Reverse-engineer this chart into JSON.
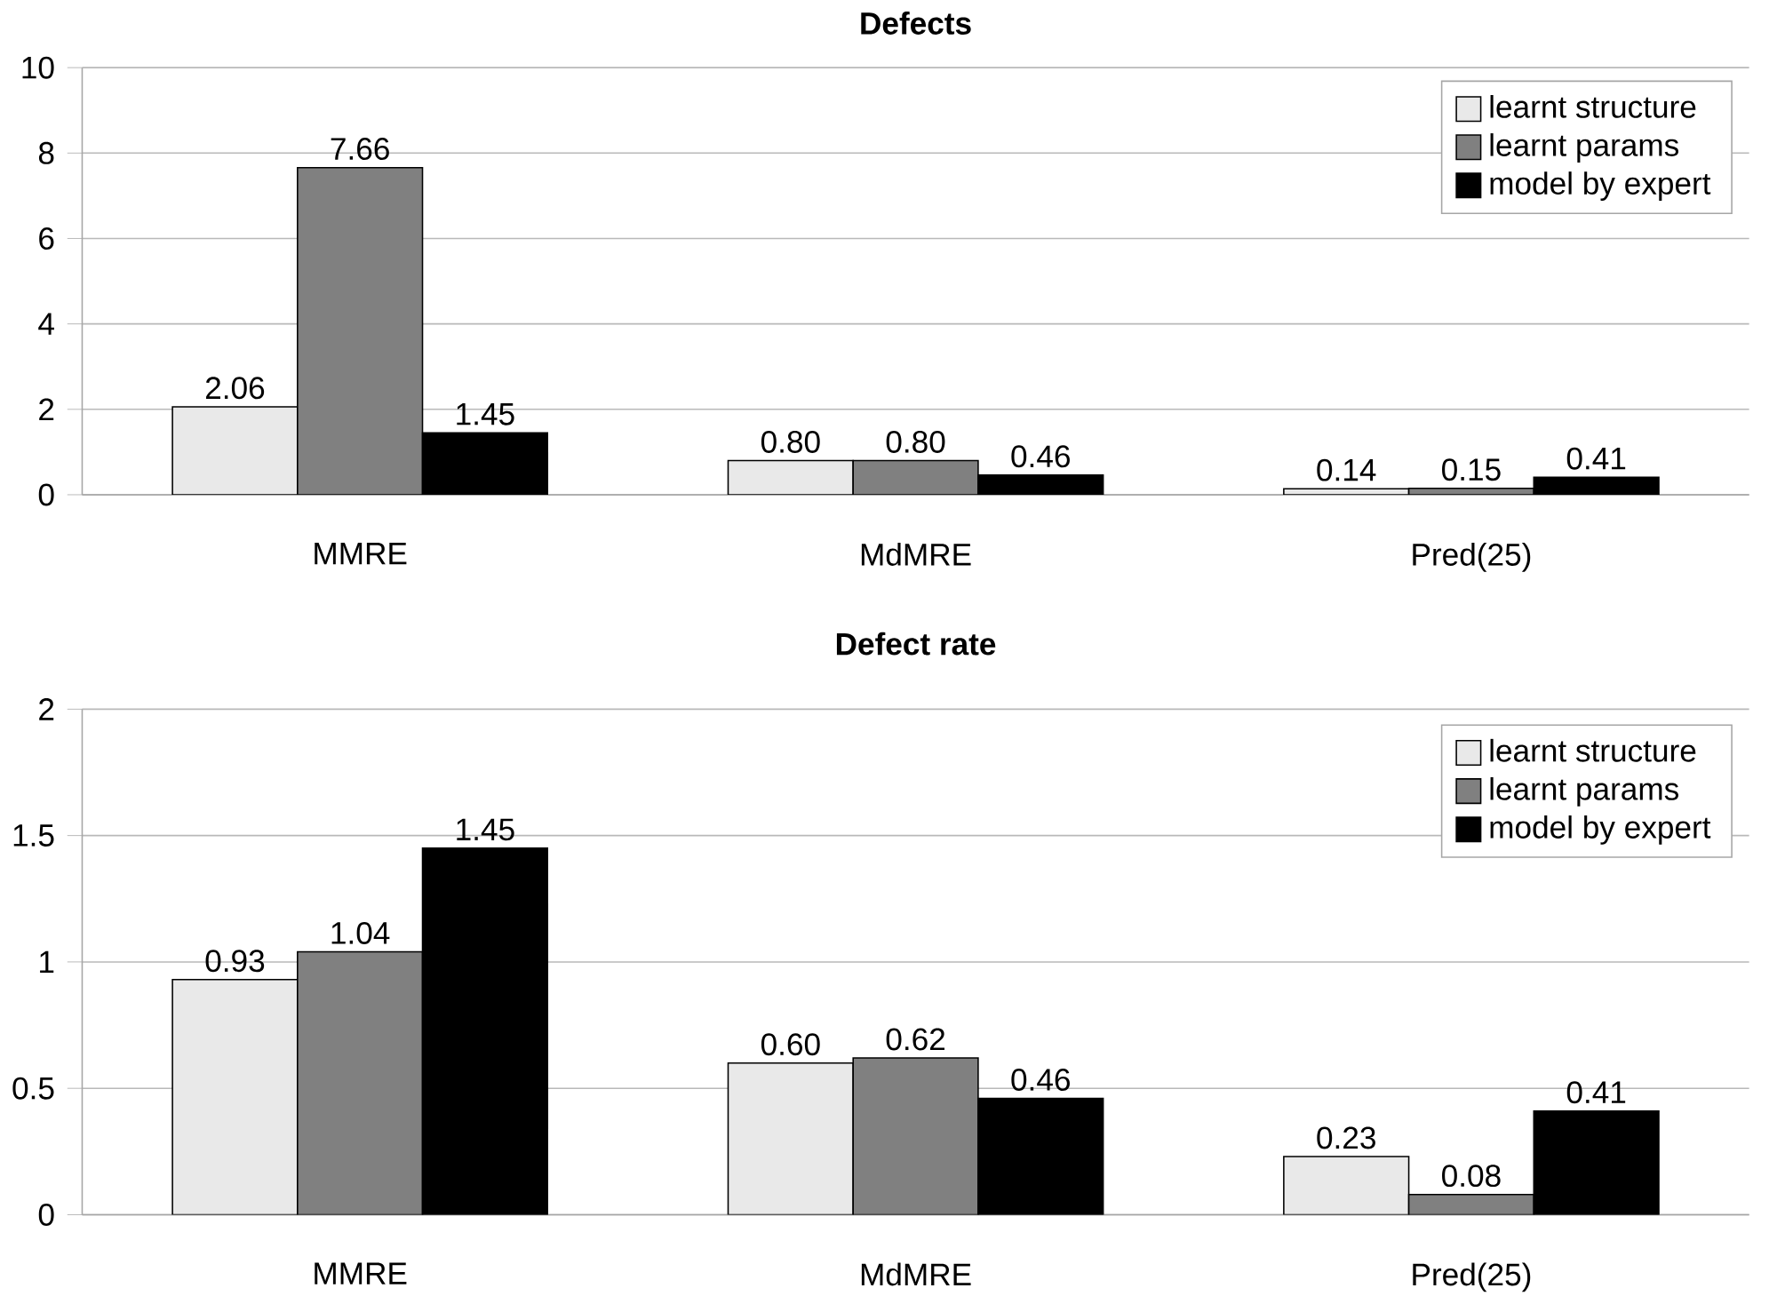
{
  "chart_data": [
    {
      "type": "bar",
      "title": "Defects",
      "categories": [
        "MMRE",
        "MdMRE",
        "Pred(25)"
      ],
      "series": [
        {
          "name": "learnt structure",
          "color": "#e9e9e9",
          "values": [
            2.06,
            0.8,
            0.14
          ],
          "value_labels": [
            "2.06",
            "0.80",
            "0.14"
          ]
        },
        {
          "name": "learnt params",
          "color": "#808080",
          "values": [
            7.66,
            0.8,
            0.15
          ],
          "value_labels": [
            "7.66",
            "0.80",
            "0.15"
          ]
        },
        {
          "name": "model by expert",
          "color": "#000000",
          "values": [
            1.45,
            0.46,
            0.41
          ],
          "value_labels": [
            "1.45",
            "0.46",
            "0.41"
          ]
        }
      ],
      "ylim": [
        0,
        10
      ],
      "yticks": [
        0,
        2,
        4,
        6,
        8,
        10
      ],
      "grid": "y",
      "legend": "top right"
    },
    {
      "type": "bar",
      "title": "Defect rate",
      "categories": [
        "MMRE",
        "MdMRE",
        "Pred(25)"
      ],
      "series": [
        {
          "name": "learnt structure",
          "color": "#e9e9e9",
          "values": [
            0.93,
            0.6,
            0.23
          ],
          "value_labels": [
            "0.93",
            "0.60",
            "0.23"
          ]
        },
        {
          "name": "learnt params",
          "color": "#808080",
          "values": [
            1.04,
            0.62,
            0.08
          ],
          "value_labels": [
            "1.04",
            "0.62",
            "0.08"
          ]
        },
        {
          "name": "model by expert",
          "color": "#000000",
          "values": [
            1.45,
            0.46,
            0.41
          ],
          "value_labels": [
            "1.45",
            "0.46",
            "0.41"
          ]
        }
      ],
      "ylim": [
        0,
        2
      ],
      "yticks": [
        0,
        0.5,
        1,
        1.5,
        2
      ],
      "grid": "y",
      "legend": "top right"
    }
  ]
}
